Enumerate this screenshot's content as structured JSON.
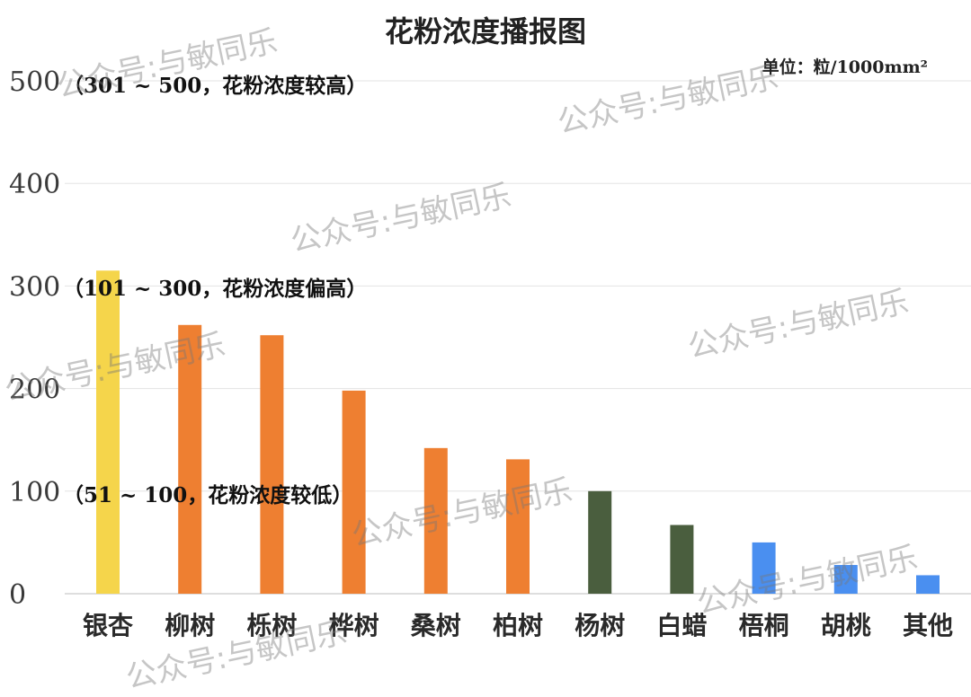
{
  "chart_data": {
    "type": "bar",
    "title": "花粉浓度播报图",
    "unit_label": "单位：粒/1000mm²",
    "categories": [
      "银杏",
      "柳树",
      "栎树",
      "桦树",
      "桑树",
      "柏树",
      "杨树",
      "白蜡",
      "梧桐",
      "胡桃",
      "其他"
    ],
    "values": [
      315,
      262,
      252,
      198,
      142,
      131,
      100,
      67,
      50,
      28,
      18
    ],
    "bar_colors": [
      "#F5D54B",
      "#EE7F31",
      "#EE7F31",
      "#EE7F31",
      "#EE7F31",
      "#EE7F31",
      "#4A5E3E",
      "#4A5E3E",
      "#4A8FF0",
      "#4A8FF0",
      "#4A8FF0"
    ],
    "ylim": [
      0,
      500
    ],
    "yticks": [
      "0",
      "100",
      "200",
      "300",
      "400",
      "500"
    ],
    "grid": true,
    "annotations": [
      {
        "text": "（301 ~ 500，花粉浓度较高）",
        "y": 500
      },
      {
        "text": "（101 ~ 300，花粉浓度偏高）",
        "y": 300
      },
      {
        "text": "（51 ~ 100，花粉浓度较低）",
        "y": 100
      }
    ]
  },
  "watermark": "公众号:与敏同乐"
}
